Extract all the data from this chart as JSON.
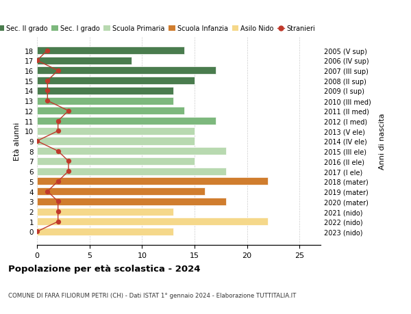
{
  "ages": [
    18,
    17,
    16,
    15,
    14,
    13,
    12,
    11,
    10,
    9,
    8,
    7,
    6,
    5,
    4,
    3,
    2,
    1,
    0
  ],
  "right_labels": [
    "2005 (V sup)",
    "2006 (IV sup)",
    "2007 (III sup)",
    "2008 (II sup)",
    "2009 (I sup)",
    "2010 (III med)",
    "2011 (II med)",
    "2012 (I med)",
    "2013 (V ele)",
    "2014 (IV ele)",
    "2015 (III ele)",
    "2016 (II ele)",
    "2017 (I ele)",
    "2018 (mater)",
    "2019 (mater)",
    "2020 (mater)",
    "2021 (nido)",
    "2022 (nido)",
    "2023 (nido)"
  ],
  "bar_values": [
    14,
    9,
    17,
    15,
    13,
    13,
    14,
    17,
    15,
    15,
    18,
    15,
    18,
    22,
    16,
    18,
    13,
    22,
    13
  ],
  "bar_colors": [
    "#4a7c4e",
    "#4a7c4e",
    "#4a7c4e",
    "#4a7c4e",
    "#4a7c4e",
    "#7db87d",
    "#7db87d",
    "#7db87d",
    "#b8d9b0",
    "#b8d9b0",
    "#b8d9b0",
    "#b8d9b0",
    "#b8d9b0",
    "#d07d2e",
    "#d07d2e",
    "#d07d2e",
    "#f5d88a",
    "#f5d88a",
    "#f5d88a"
  ],
  "stranieri_values": [
    1,
    0,
    2,
    1,
    1,
    1,
    3,
    2,
    2,
    0,
    2,
    3,
    3,
    2,
    1,
    2,
    2,
    2,
    0
  ],
  "stranieri_color": "#c0392b",
  "legend_labels": [
    "Sec. II grado",
    "Sec. I grado",
    "Scuola Primaria",
    "Scuola Infanzia",
    "Asilo Nido",
    "Stranieri"
  ],
  "legend_colors": [
    "#4a7c4e",
    "#7db87d",
    "#b8d9b0",
    "#d07d2e",
    "#f5d88a",
    "#c0392b"
  ],
  "ylabel_left": "Età alunni",
  "ylabel_right": "Anni di nascita",
  "xlim": [
    0,
    27
  ],
  "xticks": [
    0,
    5,
    10,
    15,
    20,
    25
  ],
  "title": "Popolazione per età scolastica - 2024",
  "subtitle": "COMUNE DI FARA FILIORUM PETRI (CH) - Dati ISTAT 1° gennaio 2024 - Elaborazione TUTTITALIA.IT",
  "bg_color": "#ffffff",
  "grid_color": "#cccccc"
}
